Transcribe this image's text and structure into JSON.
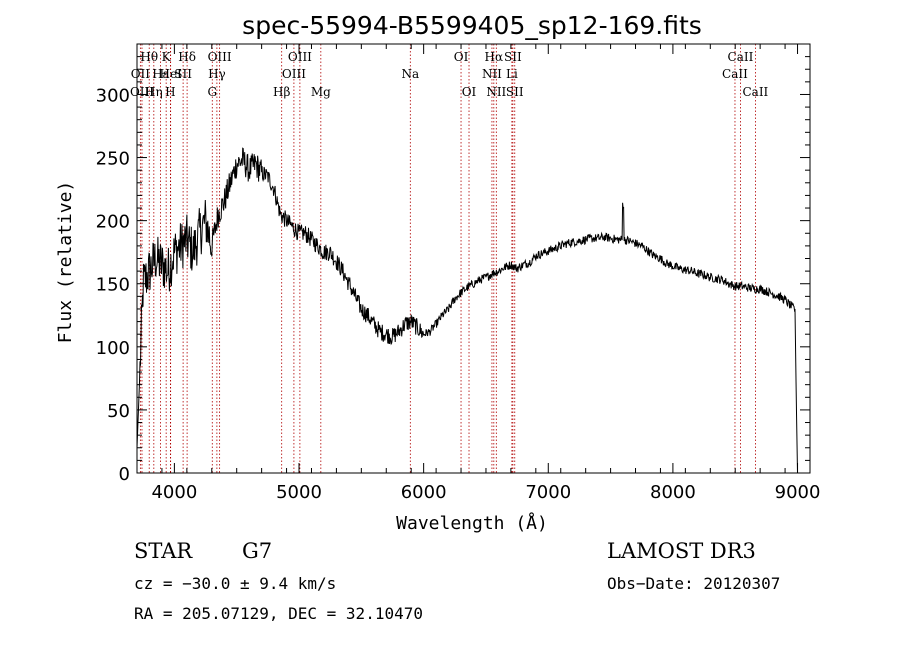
{
  "chart_data": {
    "type": "line",
    "title": "spec-55994-B5599405_sp12-169.fits",
    "xlabel": "Wavelength (Å)",
    "ylabel": "Flux (relative)",
    "xlim": [
      3700,
      9100
    ],
    "ylim": [
      0,
      340
    ],
    "xticks": [
      4000,
      5000,
      6000,
      7000,
      8000,
      9000
    ],
    "yticks": [
      0,
      50,
      100,
      150,
      200,
      250,
      300
    ],
    "series": [
      {
        "name": "spectrum",
        "x": [
          3700,
          3750,
          3800,
          3850,
          3900,
          3950,
          4000,
          4050,
          4100,
          4150,
          4200,
          4250,
          4300,
          4350,
          4400,
          4450,
          4500,
          4550,
          4600,
          4650,
          4700,
          4750,
          4800,
          4850,
          4900,
          4950,
          5000,
          5050,
          5100,
          5150,
          5200,
          5250,
          5300,
          5350,
          5400,
          5450,
          5500,
          5550,
          5600,
          5650,
          5700,
          5750,
          5800,
          5850,
          5900,
          5950,
          6000,
          6050,
          6100,
          6150,
          6200,
          6250,
          6300,
          6350,
          6400,
          6450,
          6500,
          6550,
          6600,
          6650,
          6700,
          6750,
          6800,
          6850,
          6900,
          6950,
          7000,
          7050,
          7100,
          7150,
          7200,
          7250,
          7300,
          7350,
          7400,
          7450,
          7500,
          7550,
          7600,
          7650,
          7700,
          7750,
          7800,
          7850,
          7900,
          7950,
          8000,
          8050,
          8100,
          8150,
          8200,
          8250,
          8300,
          8350,
          8400,
          8450,
          8500,
          8550,
          8600,
          8650,
          8700,
          8750,
          8800,
          8850,
          8900,
          8950,
          8980,
          8990,
          9000
        ],
        "y": [
          20,
          150,
          160,
          170,
          165,
          160,
          175,
          180,
          185,
          175,
          190,
          200,
          180,
          205,
          215,
          230,
          245,
          248,
          240,
          245,
          238,
          235,
          225,
          205,
          200,
          195,
          190,
          190,
          185,
          180,
          175,
          175,
          168,
          160,
          150,
          140,
          130,
          125,
          118,
          112,
          110,
          108,
          112,
          118,
          120,
          115,
          110,
          112,
          118,
          125,
          130,
          138,
          143,
          147,
          150,
          153,
          155,
          158,
          160,
          163,
          165,
          162,
          165,
          167,
          172,
          174,
          176,
          178,
          180,
          182,
          183,
          184,
          185,
          186,
          186,
          187,
          186,
          185,
          185,
          184,
          182,
          180,
          176,
          172,
          170,
          166,
          164,
          162,
          161,
          160,
          158,
          157,
          155,
          154,
          153,
          150,
          148,
          148,
          147,
          146,
          146,
          144,
          142,
          140,
          137,
          132,
          130,
          60,
          0
        ],
        "noise": true,
        "color": "#000000"
      }
    ],
    "emission_lines": [
      {
        "label": "Hθ",
        "x": 3798,
        "row": 1
      },
      {
        "label": "OII",
        "x": 3727,
        "row": 2
      },
      {
        "label": "OIII",
        "x": 3740,
        "row": 3
      },
      {
        "label": "K",
        "x": 3934,
        "row": 1
      },
      {
        "label": "Hε",
        "x": 3889,
        "row": 2
      },
      {
        "label": "Hη",
        "x": 3835,
        "row": 3
      },
      {
        "label": "HeI",
        "x": 3970,
        "row": 2
      },
      {
        "label": "H",
        "x": 3968,
        "row": 3
      },
      {
        "label": "Hδ",
        "x": 4102,
        "row": 1
      },
      {
        "label": "SII",
        "x": 4070,
        "row": 2
      },
      {
        "label": "OIII",
        "x": 4363,
        "row": 1
      },
      {
        "label": "Hγ",
        "x": 4341,
        "row": 2
      },
      {
        "label": "G",
        "x": 4304,
        "row": 3
      },
      {
        "label": "Hβ",
        "x": 4861,
        "row": 3
      },
      {
        "label": "OIII",
        "x": 5007,
        "row": 1
      },
      {
        "label": "OIII",
        "x": 4959,
        "row": 2
      },
      {
        "label": "Mg",
        "x": 5175,
        "row": 3
      },
      {
        "label": "Na",
        "x": 5893,
        "row": 2
      },
      {
        "label": "OI",
        "x": 6300,
        "row": 1
      },
      {
        "label": "OI",
        "x": 6364,
        "row": 3
      },
      {
        "label": "Hα",
        "x": 6563,
        "row": 1
      },
      {
        "label": "NII",
        "x": 6548,
        "row": 2
      },
      {
        "label": "NII",
        "x": 6583,
        "row": 3
      },
      {
        "label": "SII",
        "x": 6716,
        "row": 1
      },
      {
        "label": "Li",
        "x": 6708,
        "row": 2
      },
      {
        "label": "SII",
        "x": 6731,
        "row": 3
      },
      {
        "label": "CaII",
        "x": 8542,
        "row": 1
      },
      {
        "label": "CaII",
        "x": 8498,
        "row": 2
      },
      {
        "label": "CaII",
        "x": 8662,
        "row": 3
      }
    ],
    "line_color": "#b00000"
  },
  "info": {
    "object_class": "STAR",
    "subclass": "G7",
    "survey": "LAMOST DR3",
    "cz": "cz = −30.0 ± 9.4 km/s",
    "obs_date": "Obs−Date: 20120307",
    "coords": "RA = 205.07129, DEC =  32.10470"
  }
}
